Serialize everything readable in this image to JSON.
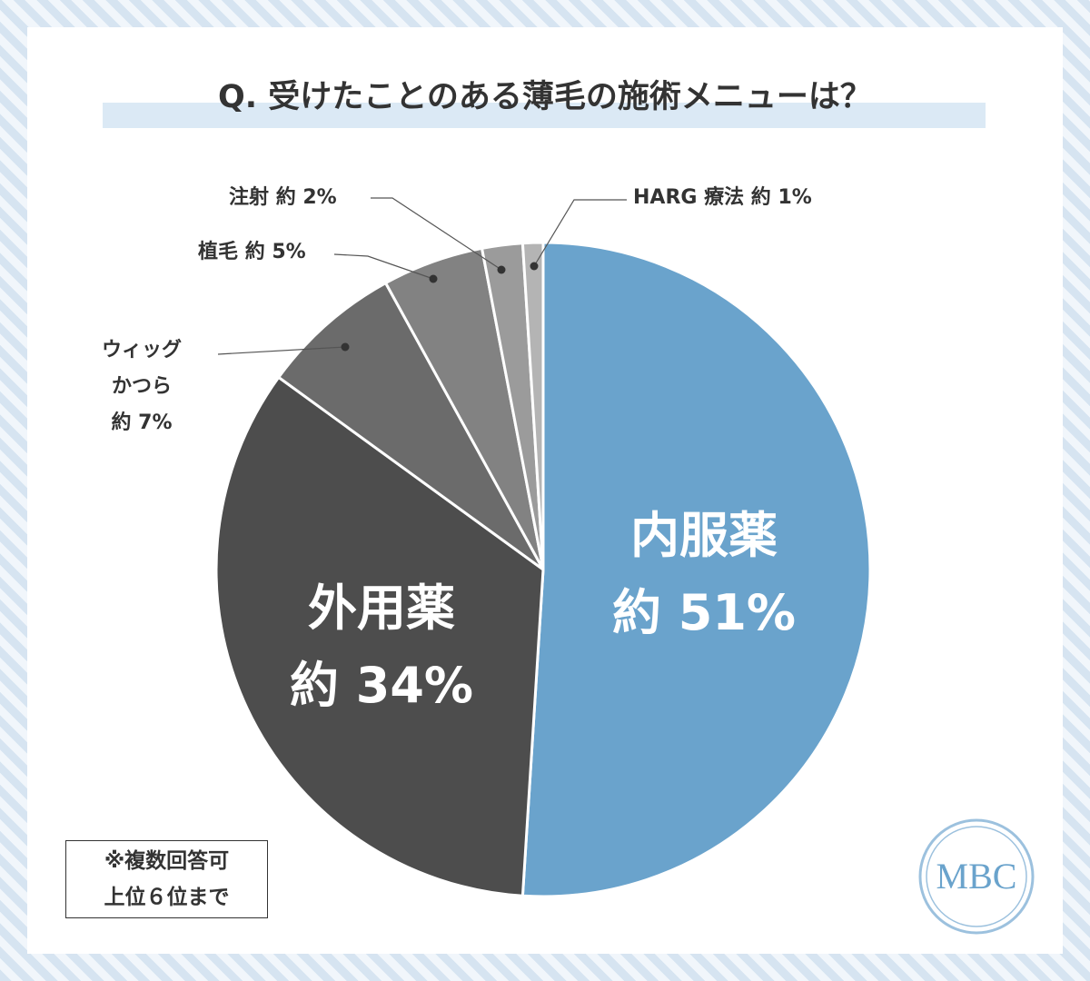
{
  "chart_data": {
    "type": "pie",
    "title": "Q. 受けたことのある薄毛の施術メニューは？",
    "categories": [
      "内服薬",
      "外用薬",
      "ウィッグ\nかつら",
      "植毛",
      "注射",
      "HARG 療法"
    ],
    "values": [
      51,
      34,
      7,
      5,
      2,
      1
    ],
    "value_labels": [
      "約 51%",
      "約 34%",
      "約 7%",
      "約 5%",
      "約 2%",
      "約 1%"
    ],
    "colors": [
      "#6aa3cc",
      "#4d4d4d",
      "#6b6b6b",
      "#828282",
      "#9b9b9b",
      "#b4b4b4"
    ]
  },
  "note": "※複数回答可\n上位６位まで",
  "logo": "MBC"
}
